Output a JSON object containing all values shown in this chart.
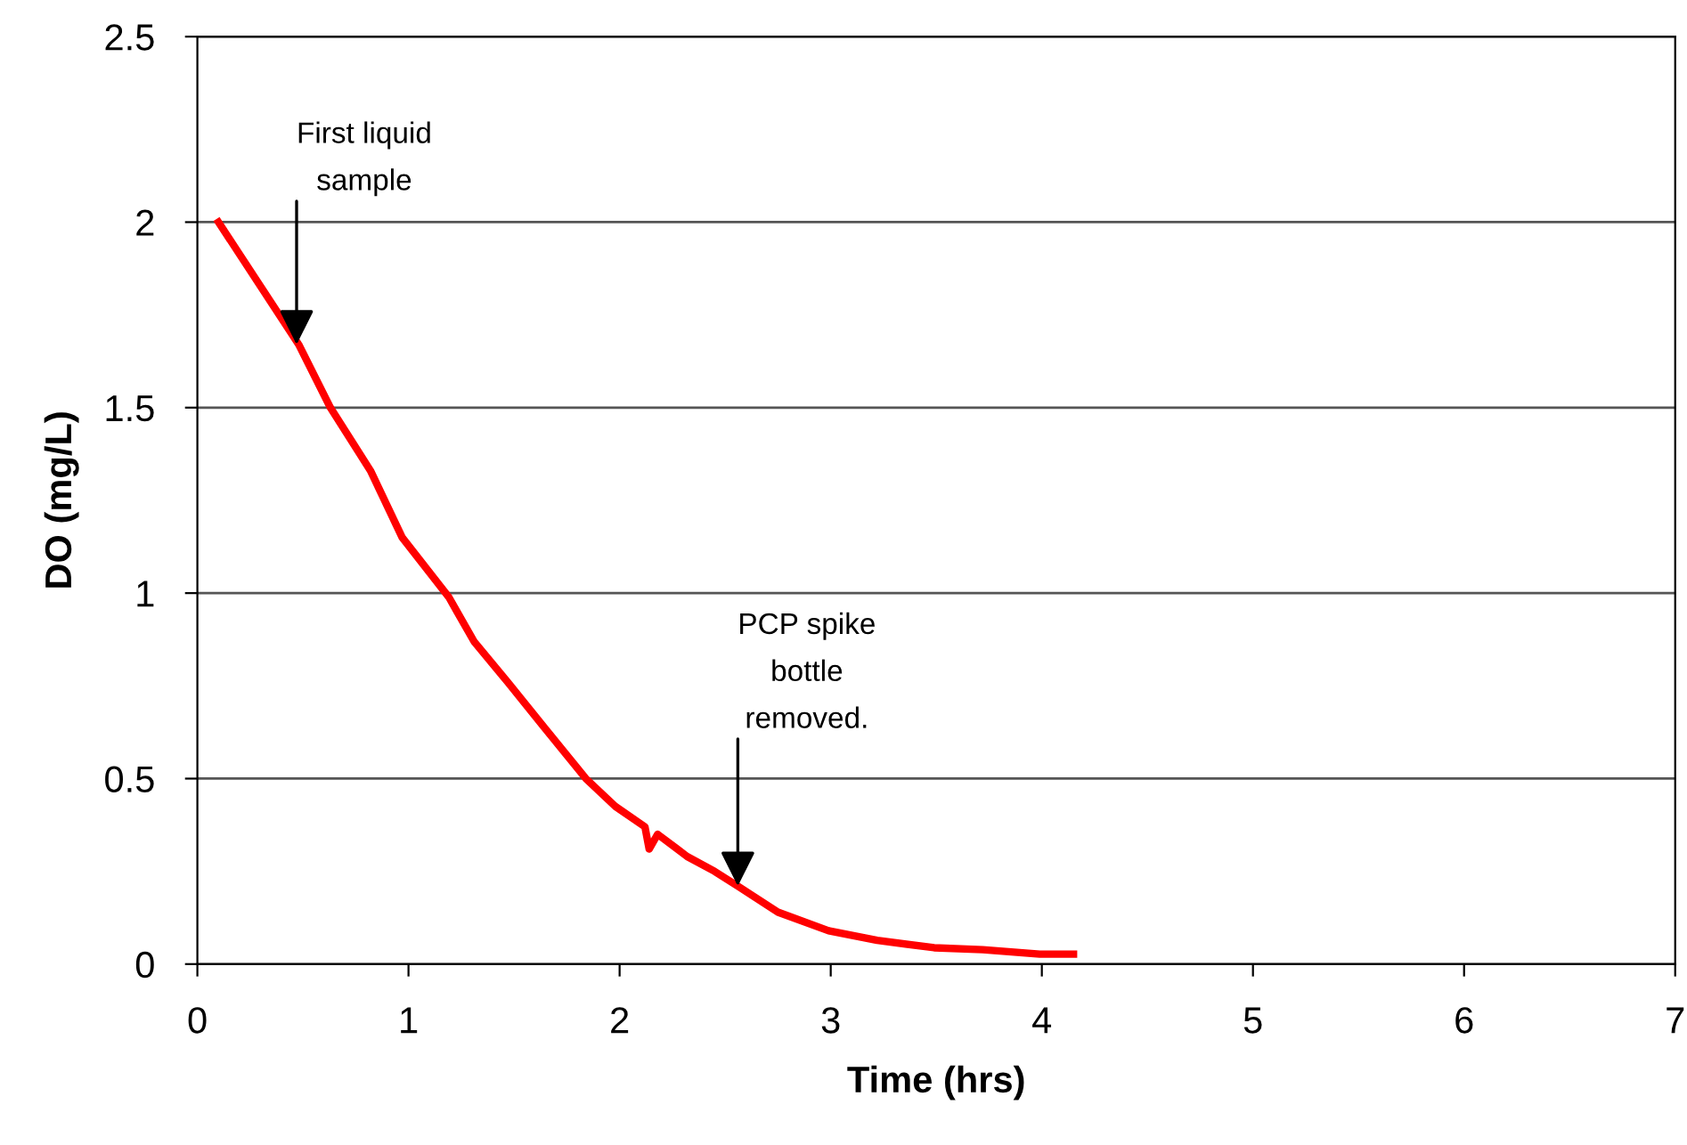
{
  "chart_data": {
    "type": "line",
    "xlabel": "Time (hrs)",
    "ylabel": "DO (mg/L)",
    "series": [
      {
        "color": "#ff0000",
        "x": [
          0.1,
          0.48,
          0.63,
          0.82,
          0.97,
          1.19,
          1.31,
          1.47,
          1.64,
          1.84,
          1.98,
          2.12,
          2.14,
          2.18,
          2.32,
          2.45,
          2.56,
          2.75,
          2.99,
          3.22,
          3.49,
          3.72,
          3.99,
          4.15
        ],
        "values": [
          2.0,
          1.67,
          1.5,
          1.33,
          1.15,
          0.99,
          0.87,
          0.76,
          0.64,
          0.5,
          0.425,
          0.37,
          0.31,
          0.35,
          0.29,
          0.25,
          0.21,
          0.14,
          0.09,
          0.064,
          0.044,
          0.039,
          0.027,
          0.027
        ]
      }
    ],
    "annotations": [
      {
        "text": "First liquid\nsample",
        "x": 0.47,
        "y": 1.67
      },
      {
        "text": "PCP spike\nbottle\nremoved.",
        "x": 2.56,
        "y": 0.21
      }
    ],
    "xlim": [
      0,
      7
    ],
    "xticks": [
      0,
      1,
      2,
      3,
      4,
      5,
      6,
      7
    ],
    "ylim": [
      0,
      2.5
    ],
    "yticks": [
      0,
      0.5,
      1,
      1.5,
      2,
      2.5
    ],
    "grid": "y",
    "marker": "none",
    "line_style": "solid"
  }
}
